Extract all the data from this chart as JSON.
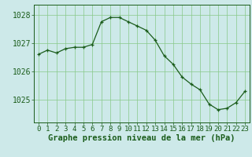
{
  "hours": [
    0,
    1,
    2,
    3,
    4,
    5,
    6,
    7,
    8,
    9,
    10,
    11,
    12,
    13,
    14,
    15,
    16,
    17,
    18,
    19,
    20,
    21,
    22,
    23
  ],
  "pressure": [
    1026.6,
    1026.75,
    1026.65,
    1026.8,
    1026.85,
    1026.85,
    1026.95,
    1027.75,
    1027.9,
    1027.9,
    1027.75,
    1027.6,
    1027.45,
    1027.1,
    1026.55,
    1026.25,
    1025.8,
    1025.55,
    1025.35,
    1024.85,
    1024.65,
    1024.7,
    1024.9,
    1025.3
  ],
  "line_color": "#1a5c1a",
  "marker": "+",
  "background_color": "#cde9e9",
  "grid_color": "#88c888",
  "ylabel_ticks": [
    1025,
    1026,
    1027,
    1028
  ],
  "xlabel": "Graphe pression niveau de la mer (hPa)",
  "ylim": [
    1024.2,
    1028.35
  ],
  "xlim": [
    -0.5,
    23.5
  ],
  "xlabel_fontsize": 7.5,
  "tick_fontsize": 6.5
}
